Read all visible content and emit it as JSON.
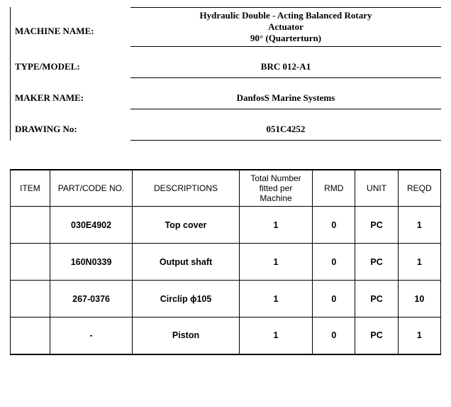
{
  "header": {
    "labels": {
      "machine": "MACHINE NAME:",
      "type": "TYPE/MODEL:",
      "maker": "MAKER NAME:",
      "drawing": "DRAWING No:"
    },
    "values": {
      "machine_line1": "Hydraulic Double - Acting Balanced Rotary",
      "machine_line2": "Actuator",
      "machine_line3": "90° (Quarterturn)",
      "type": "BRC 012-A1",
      "maker": "DanfosS Marine Systems",
      "drawing": "051C4252"
    }
  },
  "table": {
    "columns": {
      "item": "ITEM",
      "part": "PART/CODE NO.",
      "desc": "DESCRIPTIONS",
      "total": "Total Number fitted per Machine",
      "rmd": "RMD",
      "unit": "UNIT",
      "reqd": "REQD"
    },
    "rows": [
      {
        "item": "",
        "part": "030E4902",
        "desc": "Top cover",
        "total": "1",
        "rmd": "0",
        "unit": "PC",
        "reqd": "1"
      },
      {
        "item": "",
        "part": "160N0339",
        "desc": "Output shaft",
        "total": "1",
        "rmd": "0",
        "unit": "PC",
        "reqd": "1"
      },
      {
        "item": "",
        "part": "267-0376",
        "desc": "Circlip ϕ105",
        "total": "1",
        "rmd": "0",
        "unit": "PC",
        "reqd": "10"
      },
      {
        "item": "",
        "part": "-",
        "desc": "Piston",
        "total": "1",
        "rmd": "0",
        "unit": "PC",
        "reqd": "1"
      }
    ]
  }
}
